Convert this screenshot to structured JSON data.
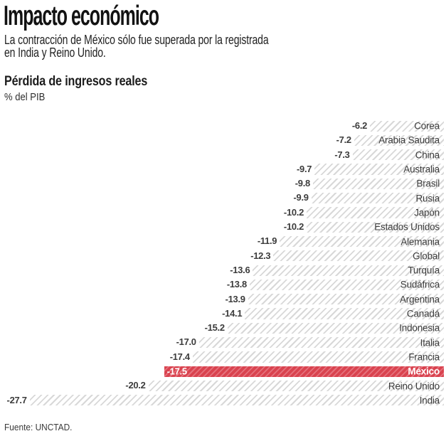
{
  "header": {
    "title": "Impacto económico",
    "subtitle_lines": [
      "La contracción de México sólo fue superada por la registrada",
      "en India y Reino Unido."
    ]
  },
  "chart_data": {
    "type": "bar",
    "orientation": "horizontal",
    "title": "Pérdida de ingresos reales",
    "unit": "% del PIB",
    "xlim": [
      -29.5,
      0
    ],
    "grid": false,
    "legend_position": "none",
    "value_labels_position": "left-of-bar",
    "category_labels_position": "inside-bar-right",
    "categories": [
      "Corea",
      "Arabia Saudita",
      "China",
      "Australia",
      "Brasil",
      "Rusia",
      "Japón",
      "Estados Unidos",
      "Alemania",
      "Global",
      "Turquía",
      "Sudáfrica",
      "Argentina",
      "Canadá",
      "Indonesia",
      "Italia",
      "Francia",
      "México",
      "Reino Unido",
      "India"
    ],
    "values": [
      -6.2,
      -7.2,
      -7.3,
      -9.7,
      -9.8,
      -9.9,
      -10.2,
      -10.2,
      -11.9,
      -12.3,
      -13.6,
      -13.8,
      -13.9,
      -14.1,
      -15.2,
      -17.0,
      -17.4,
      -17.5,
      -20.2,
      -27.7
    ],
    "highlight_category": "México",
    "colors": {
      "hatch_bg": "#ffffff",
      "hatch_line": "#d8d8d8",
      "highlight_base": "#d9434f",
      "highlight_stripe": "#e5717c",
      "label_text": "#3c3c3c",
      "highlight_text": "#ffffff"
    }
  },
  "source": "Fuente: UNCTAD."
}
